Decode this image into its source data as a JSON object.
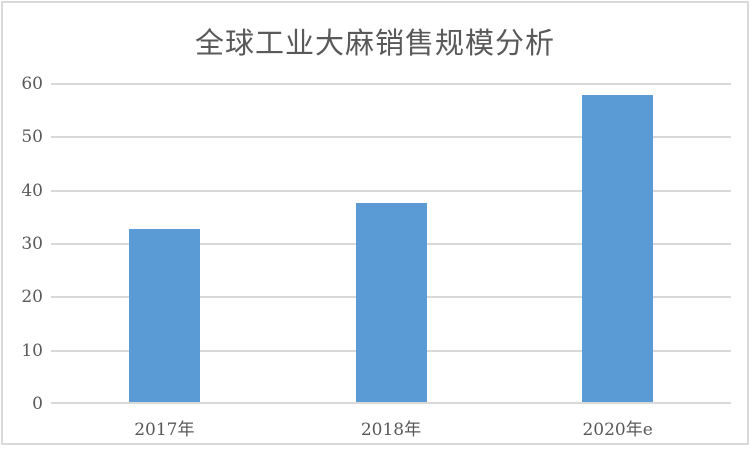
{
  "chart_data": {
    "type": "bar",
    "title": "全球工业大麻销售规模分析",
    "categories": [
      "2017年",
      "2018年",
      "2020年e"
    ],
    "values": [
      32.5,
      37.4,
      57.5
    ],
    "xlabel": "",
    "ylabel": "",
    "ylim": [
      0,
      60
    ],
    "yticks": [
      0,
      10,
      20,
      30,
      40,
      50,
      60
    ],
    "grid": true,
    "legend_position": "none",
    "colors": {
      "bar_fill": "#5b9bd5",
      "gridline": "#d9d9d9",
      "axis_line": "#d9d9d9",
      "text": "#595959",
      "frame_border": "#d9d9d9",
      "background": "#ffffff"
    }
  }
}
